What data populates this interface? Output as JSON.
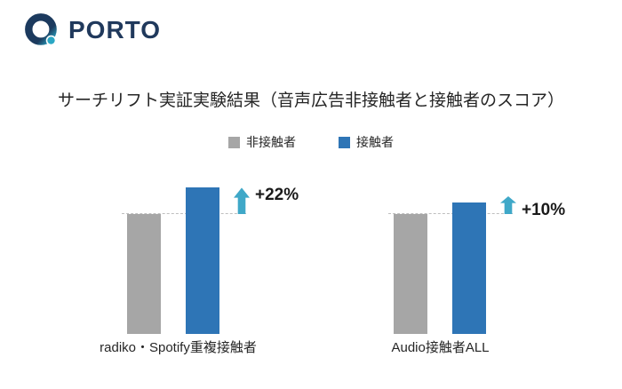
{
  "logo": {
    "brand": "PORTO"
  },
  "header": {
    "title": "サーチリフト実証実験結果（音声広告非接触者と接触者のスコア）"
  },
  "legend": {
    "items": [
      {
        "label": "非接触者",
        "color": "#a6a6a6"
      },
      {
        "label": "接触者",
        "color": "#2e75b6"
      }
    ]
  },
  "chart_data": {
    "type": "bar",
    "title": "サーチリフト実証実験結果（音声広告非接触者と接触者のスコア）",
    "categories": [
      "radiko・Spotify重複接触者",
      "Audio接触者ALL"
    ],
    "series": [
      {
        "name": "非接触者",
        "color": "#a6a6a6",
        "values": [
          100,
          100
        ]
      },
      {
        "name": "接触者",
        "color": "#2e75b6",
        "values": [
          122,
          110
        ]
      }
    ],
    "annotations": [
      {
        "label": "+22%",
        "category": "radiko・Spotify重複接触者"
      },
      {
        "label": "+10%",
        "category": "Audio接触者ALL"
      }
    ],
    "ylim": [
      0,
      130
    ],
    "grid": false,
    "legend_position": "top",
    "axis_labels_visible": false
  },
  "colors": {
    "bar_gray": "#a6a6a6",
    "bar_blue": "#2e75b6",
    "arrow_teal": "#3fa8c8",
    "dash_gray": "#bfbfbf",
    "logo_navy": "#1c3a5e",
    "logo_teal": "#2ba7c4"
  }
}
